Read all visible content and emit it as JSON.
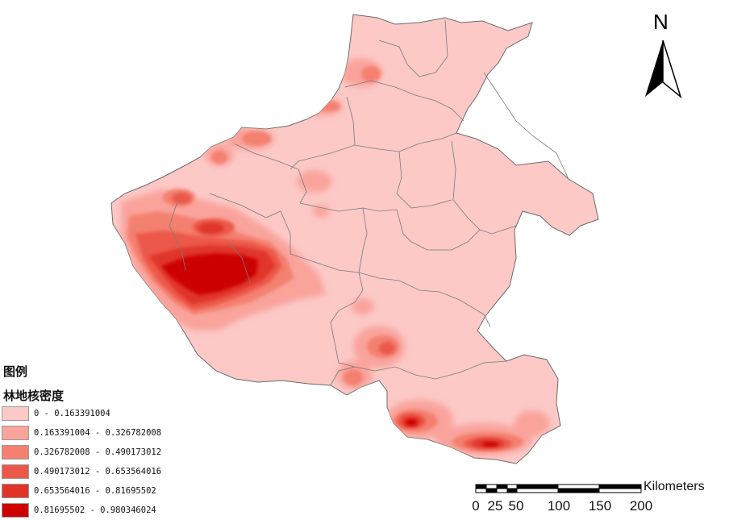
{
  "legend": {
    "heading": "图例",
    "layer_name": "林地核密度",
    "classes": [
      {
        "label": "0 - 0.163391004",
        "color": "#fcc9c7"
      },
      {
        "label": "0.163391004 - 0.326782008",
        "color": "#f9a39b"
      },
      {
        "label": "0.326782008 - 0.490173012",
        "color": "#f4806f"
      },
      {
        "label": "0.490173012 - 0.653564016",
        "color": "#ec5848"
      },
      {
        "label": "0.653564016 - 0.81695502",
        "color": "#e0342a"
      },
      {
        "label": "0.81695502 - 0.980346024",
        "color": "#cc0000"
      }
    ]
  },
  "north_arrow": {
    "label": "N"
  },
  "scale_bar": {
    "unit": "Kilometers",
    "ticks": [
      "0",
      "25",
      "50",
      "100",
      "150",
      "200"
    ]
  },
  "colors": {
    "background": "#ffffff",
    "boundary": "#6b6b6b",
    "base_fill": "#fcc9c7"
  }
}
